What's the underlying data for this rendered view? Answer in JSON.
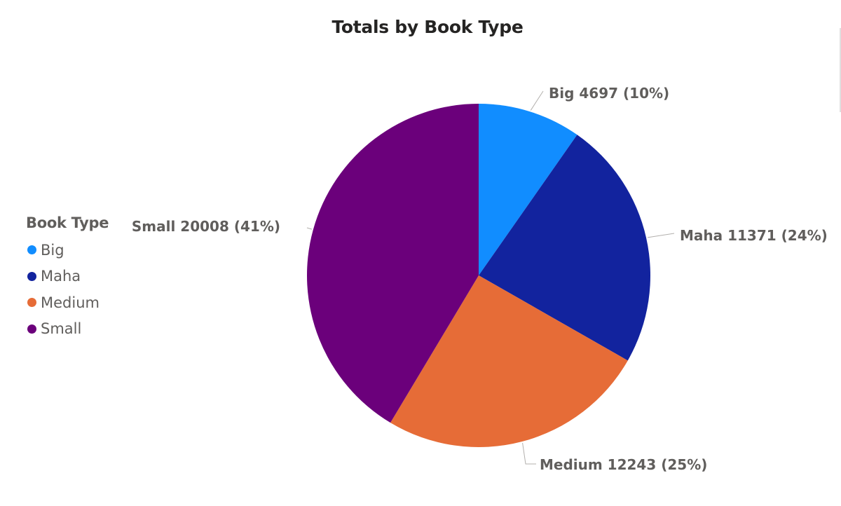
{
  "chart_data": {
    "type": "pie",
    "title": "Totals by Book Type",
    "legend": {
      "title": "Book Type",
      "placement": "left"
    },
    "slices": [
      {
        "label": "Big",
        "value": 4697,
        "percent_label": "(10%)",
        "color": "#118dff"
      },
      {
        "label": "Maha",
        "value": 11371,
        "percent_label": "(24%)",
        "color": "#12239e"
      },
      {
        "label": "Medium",
        "value": 12243,
        "percent_label": "(25%)",
        "color": "#e66c37"
      },
      {
        "label": "Small",
        "value": 20008,
        "percent_label": "(41%)",
        "color": "#6b007b"
      }
    ]
  }
}
